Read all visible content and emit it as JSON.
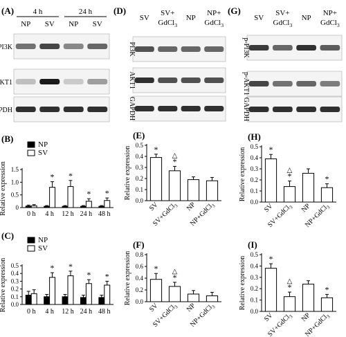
{
  "panels": [
    {
      "id": "A",
      "label": "(A)",
      "type": "blot",
      "groups": [
        {
          "text": "4 h",
          "lanes": [
            0,
            1
          ]
        },
        {
          "text": "24 h",
          "lanes": [
            2,
            3
          ]
        }
      ],
      "lanes": [
        "NP",
        "SV",
        "NP",
        "SV"
      ],
      "bands": [
        {
          "name": "PI3K",
          "intensity": [
            0.55,
            0.75,
            0.45,
            0.6
          ]
        },
        {
          "name": "AKT1",
          "intensity": [
            0.2,
            0.95,
            0.15,
            0.35
          ]
        },
        {
          "name": "GAPDH",
          "intensity": [
            0.85,
            0.85,
            0.85,
            0.85
          ]
        }
      ]
    },
    {
      "id": "D",
      "label": "(D)",
      "type": "blot",
      "groups": [],
      "lanes": [
        "SV",
        "SV+\nGdCl3",
        "NP",
        "NP+\nGdCl3"
      ],
      "bands": [
        {
          "name": "PI3K",
          "intensity": [
            0.7,
            0.6,
            0.6,
            0.6
          ]
        },
        {
          "name": "AKT1",
          "intensity": [
            0.85,
            0.7,
            0.7,
            0.7
          ]
        },
        {
          "name": "GAPDH",
          "intensity": [
            0.85,
            0.85,
            0.85,
            0.85
          ]
        }
      ]
    },
    {
      "id": "G",
      "label": "(G)",
      "type": "blot",
      "groups": [],
      "lanes": [
        "SV",
        "SV+\nGdCl3",
        "NP",
        "NP+\nGdCl3"
      ],
      "bands": [
        {
          "name": "p-PI3K",
          "intensity": [
            0.8,
            0.6,
            0.85,
            0.65
          ]
        },
        {
          "name": "p-AKT1",
          "intensity": [
            0.75,
            0.55,
            0.6,
            0.5
          ]
        },
        {
          "name": "GAPDH",
          "intensity": [
            0.85,
            0.85,
            0.85,
            0.85
          ]
        }
      ]
    }
  ],
  "chart_data": [
    {
      "panel": "B",
      "label": "(B)",
      "type": "bar",
      "ylabel": "Relative expression",
      "categories": [
        "0 h",
        "4 h",
        "12 h",
        "24 h",
        "48 h"
      ],
      "ylim": [
        0,
        1.5
      ],
      "yticks": [
        0,
        0.5,
        1.0,
        1.5
      ],
      "tick_labels": [
        "0",
        "0.5",
        "1.0",
        "1.5"
      ],
      "legend": "top-left",
      "series": [
        {
          "name": "NP",
          "fill": "#000000",
          "values": [
            0.06,
            0.05,
            0.05,
            0.05,
            0.05
          ],
          "errors": [
            0.04,
            0.03,
            0.03,
            0.03,
            0.03
          ],
          "marks": [
            "",
            "",
            "",
            "",
            ""
          ]
        },
        {
          "name": "SV",
          "fill": "#ffffff",
          "values": [
            0.07,
            0.8,
            0.83,
            0.25,
            0.28
          ],
          "errors": [
            0.05,
            0.22,
            0.24,
            0.1,
            0.1
          ],
          "marks": [
            "",
            "*",
            "*",
            "*",
            "*"
          ]
        }
      ]
    },
    {
      "panel": "C",
      "label": "(C)",
      "type": "bar",
      "ylabel": "Relative expression",
      "categories": [
        "0 h",
        "4 h",
        "12 h",
        "24 h",
        "48 h"
      ],
      "ylim": [
        0,
        0.5
      ],
      "yticks": [
        0,
        0.1,
        0.2,
        0.3,
        0.4,
        0.5
      ],
      "tick_labels": [
        "0.0",
        "0.1",
        "0.2",
        "0.3",
        "0.4",
        "0.5"
      ],
      "legend": "top-left",
      "series": [
        {
          "name": "NP",
          "fill": "#000000",
          "values": [
            0.12,
            0.1,
            0.1,
            0.09,
            0.09
          ],
          "errors": [
            0.05,
            0.03,
            0.03,
            0.03,
            0.03
          ],
          "marks": [
            "",
            "",
            "",
            "",
            ""
          ]
        },
        {
          "name": "SV",
          "fill": "#ffffff",
          "values": [
            0.14,
            0.35,
            0.37,
            0.27,
            0.25
          ],
          "errors": [
            0.05,
            0.06,
            0.06,
            0.05,
            0.05
          ],
          "marks": [
            "",
            "*",
            "*",
            "*",
            "*"
          ]
        }
      ]
    },
    {
      "panel": "E",
      "label": "(E)",
      "type": "bar",
      "ylabel": "Relative expression",
      "categories": [
        "SV",
        "SV+GdCl3",
        "NP",
        "NP+GdCl3"
      ],
      "ylim": [
        0,
        0.5
      ],
      "yticks": [
        0,
        0.1,
        0.2,
        0.3,
        0.4,
        0.5
      ],
      "tick_labels": [
        "0.0",
        "0.1",
        "0.2",
        "0.3",
        "0.4",
        "0.5"
      ],
      "series": [
        {
          "values": [
            0.39,
            0.27,
            0.19,
            0.18
          ],
          "errors": [
            0.03,
            0.04,
            0.025,
            0.03
          ],
          "marks": [
            "*",
            "△\n*",
            "",
            ""
          ]
        }
      ]
    },
    {
      "panel": "F",
      "label": "(F)",
      "type": "bar",
      "ylabel": "Relative expression",
      "categories": [
        "SV",
        "SV+GdCl3",
        "NP",
        "NP+GdCl3"
      ],
      "ylim": [
        0,
        0.8
      ],
      "yticks": [
        0,
        0.2,
        0.4,
        0.6,
        0.8
      ],
      "tick_labels": [
        "0.0",
        "0.2",
        "0.4",
        "0.6",
        "0.8"
      ],
      "series": [
        {
          "values": [
            0.38,
            0.26,
            0.13,
            0.1
          ],
          "errors": [
            0.1,
            0.07,
            0.06,
            0.06
          ],
          "marks": [
            "*",
            "△\n*",
            "",
            ""
          ]
        }
      ]
    },
    {
      "panel": "H",
      "label": "(H)",
      "type": "bar",
      "ylabel": "Relative expression",
      "categories": [
        "SV",
        "SV+GdCl3",
        "NP",
        "NP+GdCl3"
      ],
      "ylim": [
        0,
        0.5
      ],
      "yticks": [
        0,
        0.1,
        0.2,
        0.3,
        0.4,
        0.5
      ],
      "tick_labels": [
        "0.0",
        "0.1",
        "0.2",
        "0.3",
        "0.4",
        "0.5"
      ],
      "series": [
        {
          "values": [
            0.39,
            0.14,
            0.26,
            0.13
          ],
          "errors": [
            0.04,
            0.05,
            0.04,
            0.035
          ],
          "marks": [
            "*",
            "△\n*",
            "",
            "*"
          ]
        }
      ]
    },
    {
      "panel": "I",
      "label": "(I)",
      "type": "bar",
      "ylabel": "Relative expression",
      "categories": [
        "SV",
        "SV+GdCl3",
        "NP",
        "NP+GdCl3"
      ],
      "ylim": [
        0,
        0.5
      ],
      "yticks": [
        0,
        0.1,
        0.2,
        0.3,
        0.4,
        0.5
      ],
      "tick_labels": [
        "0.0",
        "0.1",
        "0.2",
        "0.3",
        "0.4",
        "0.5"
      ],
      "series": [
        {
          "values": [
            0.38,
            0.13,
            0.24,
            0.12
          ],
          "errors": [
            0.04,
            0.04,
            0.03,
            0.03
          ],
          "marks": [
            "*",
            "△\n*",
            "",
            "*"
          ]
        }
      ]
    }
  ]
}
